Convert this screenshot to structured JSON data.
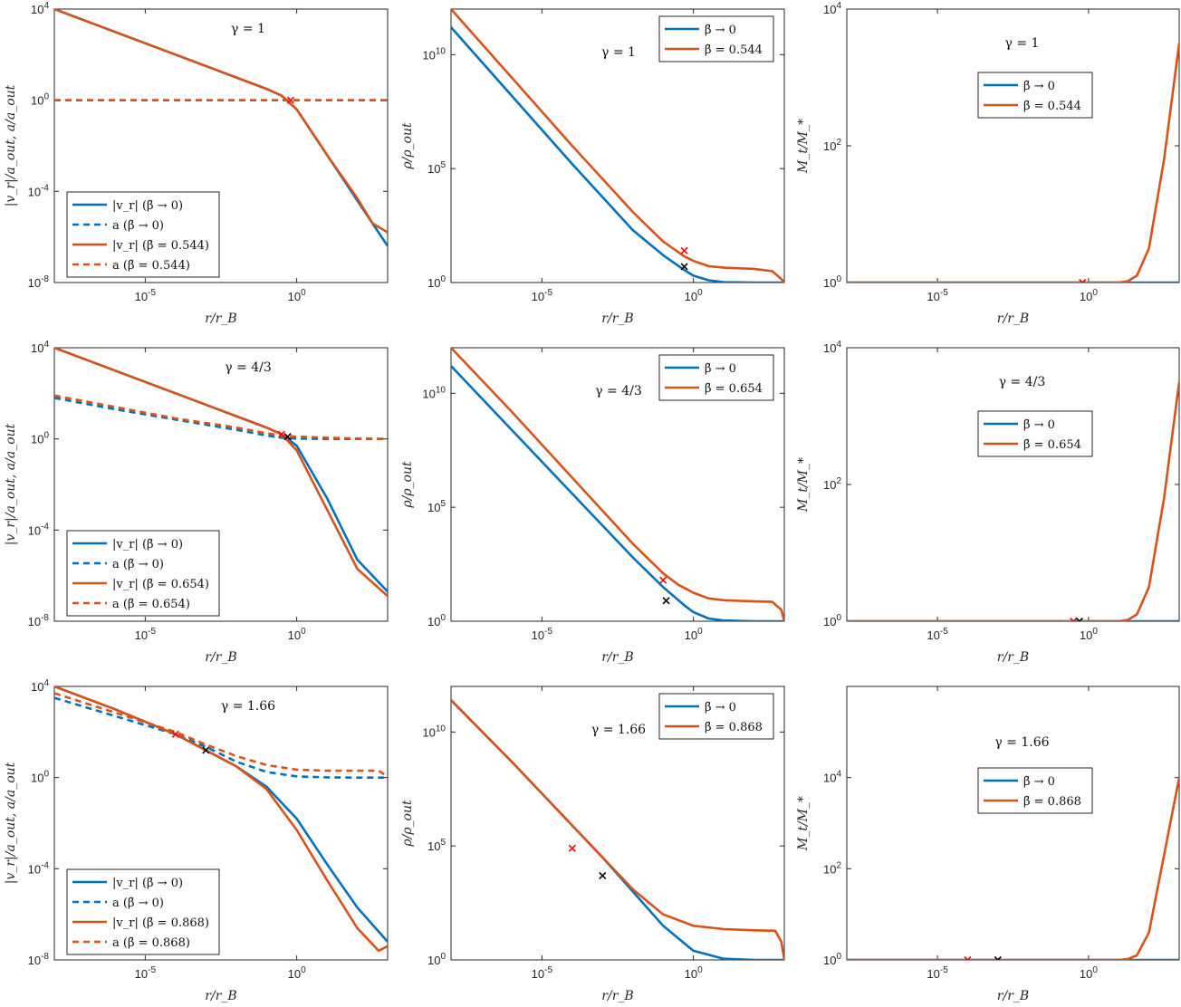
{
  "colors": {
    "blue": "#0072BD",
    "orange": "#D95319",
    "red": "#ff0000",
    "black": "#000000"
  },
  "chart_data": [
    {
      "type": "line",
      "row": 0,
      "col": 0,
      "title": "γ = 1",
      "xlabel": "r/r_B",
      "ylabel": "|v_r|/a_out, a/a_out",
      "xlim": [
        -8,
        3
      ],
      "ylim": [
        -8,
        4
      ],
      "xticks": [
        "10^-5",
        "10^0"
      ],
      "yticks": [
        "10^-8",
        "10^-4",
        "10^0",
        "10^4"
      ],
      "legend": [
        "|v_r| (β̃ → 0)",
        "a (β̃ → 0)",
        "|v_r| (β̃ = 0.544)",
        "a (β̃ = 0.544)"
      ],
      "series": [
        {
          "name": "|v_r| (β̃ → 0)",
          "color": "blue",
          "dash": false,
          "x": [
            -8,
            -6,
            -4,
            -2,
            -1,
            -0.5,
            0,
            1,
            2,
            3
          ],
          "y": [
            4,
            3.0,
            2.0,
            1.0,
            0.5,
            0.2,
            -0.4,
            -2.4,
            -4.4,
            -6.4
          ]
        },
        {
          "name": "a (β̃ → 0)",
          "color": "blue",
          "dash": true,
          "x": [
            -8,
            3
          ],
          "y": [
            0,
            0
          ]
        },
        {
          "name": "|v_r| (β̃ = 0.544)",
          "color": "orange",
          "dash": false,
          "x": [
            -8,
            -6,
            -4,
            -2,
            -1,
            -0.5,
            0,
            1,
            2,
            2.5,
            3
          ],
          "y": [
            4,
            3.0,
            2.0,
            1.0,
            0.5,
            0.2,
            -0.4,
            -2.4,
            -4.3,
            -5.4,
            -5.8
          ]
        },
        {
          "name": "a (β̃ = 0.544)",
          "color": "orange",
          "dash": true,
          "x": [
            -8,
            3
          ],
          "y": [
            0,
            0
          ]
        }
      ],
      "markers": [
        {
          "x": -0.2,
          "y": 0,
          "color": "red"
        }
      ]
    },
    {
      "type": "line",
      "row": 0,
      "col": 1,
      "title": "γ = 1",
      "xlabel": "r/r_B",
      "ylabel": "ρ/ρ_out",
      "xlim": [
        -8,
        3
      ],
      "ylim": [
        0,
        12
      ],
      "xticks": [
        "10^-5",
        "10^0"
      ],
      "yticks": [
        "10^0",
        "10^5",
        "10^10"
      ],
      "legend": [
        "β̃ → 0",
        "β̃ = 0.544"
      ],
      "series": [
        {
          "name": "β̃ → 0",
          "color": "blue",
          "dash": false,
          "x": [
            -8,
            -6,
            -4,
            -2,
            -1,
            -0.3,
            0,
            0.5,
            1,
            2,
            3
          ],
          "y": [
            11.2,
            8.2,
            5.2,
            2.3,
            1.2,
            0.55,
            0.3,
            0.1,
            0.02,
            0,
            0
          ]
        },
        {
          "name": "β̃ = 0.544",
          "color": "orange",
          "dash": false,
          "x": [
            -8,
            -6,
            -4,
            -2,
            -1,
            -0.3,
            0,
            0.5,
            1,
            2,
            2.6,
            2.9,
            3
          ],
          "y": [
            12,
            9.0,
            6.0,
            3.1,
            1.8,
            1.15,
            0.95,
            0.72,
            0.65,
            0.6,
            0.5,
            0.15,
            0
          ]
        }
      ],
      "markers": [
        {
          "x": -0.3,
          "y": 1.4,
          "color": "red"
        },
        {
          "x": -0.3,
          "y": 0.7,
          "color": "black"
        }
      ]
    },
    {
      "type": "line",
      "row": 0,
      "col": 2,
      "title": "γ = 1",
      "xlabel": "r/r_B",
      "ylabel": "M_t/M_*",
      "xlim": [
        -8,
        3
      ],
      "ylim": [
        0,
        4
      ],
      "xticks": [
        "10^-5",
        "10^0"
      ],
      "yticks": [
        "10^0",
        "10^2",
        "10^4"
      ],
      "legend": [
        "β̃ → 0",
        "β̃ = 0.544"
      ],
      "series": [
        {
          "name": "β̃ → 0",
          "color": "blue",
          "dash": false,
          "x": [
            -8,
            3
          ],
          "y": [
            0,
            0
          ]
        },
        {
          "name": "β̃ = 0.544",
          "color": "orange",
          "dash": false,
          "x": [
            -8,
            1,
            1.3,
            1.6,
            2,
            2.5,
            3
          ],
          "y": [
            0,
            0,
            0.02,
            0.1,
            0.5,
            1.8,
            3.5
          ]
        }
      ],
      "markers": [
        {
          "x": -0.2,
          "y": 0,
          "color": "red"
        }
      ]
    },
    {
      "type": "line",
      "row": 1,
      "col": 0,
      "title": "γ = 4/3",
      "xlabel": "r/r_B",
      "ylabel": "|v_r|/a_out, a/a_out",
      "xlim": [
        -8,
        3
      ],
      "ylim": [
        -8,
        4
      ],
      "xticks": [
        "10^-5",
        "10^0"
      ],
      "yticks": [
        "10^-8",
        "10^-4",
        "10^0",
        "10^4"
      ],
      "legend": [
        "|v_r| (β̃ → 0)",
        "a (β̃ → 0)",
        "|v_r| (β̃ = 0.654)",
        "a (β̃ = 0.654)"
      ],
      "series": [
        {
          "name": "|v_r| (β̃ → 0)",
          "color": "blue",
          "dash": false,
          "x": [
            -8,
            -6,
            -4,
            -2,
            -1,
            -0.5,
            0,
            1,
            2,
            3
          ],
          "y": [
            4,
            3.0,
            2.0,
            1.0,
            0.5,
            0.2,
            -0.3,
            -2.6,
            -5.3,
            -6.7
          ]
        },
        {
          "name": "a (β̃ → 0)",
          "color": "blue",
          "dash": true,
          "x": [
            -8,
            -6,
            -4,
            -2,
            -1,
            -0.5,
            0,
            1,
            2,
            3
          ],
          "y": [
            1.8,
            1.3,
            0.85,
            0.4,
            0.15,
            0.05,
            0.01,
            0,
            0,
            0
          ]
        },
        {
          "name": "|v_r| (β̃ = 0.654)",
          "color": "orange",
          "dash": false,
          "x": [
            -8,
            -6,
            -4,
            -2,
            -1,
            -0.5,
            0,
            1,
            2,
            3
          ],
          "y": [
            4,
            3.0,
            2.0,
            1.0,
            0.5,
            0.2,
            -0.5,
            -3.1,
            -5.7,
            -6.9
          ]
        },
        {
          "name": "a (β̃ = 0.654)",
          "color": "orange",
          "dash": true,
          "x": [
            -8,
            -6,
            -4,
            -2,
            -1,
            -0.5,
            0,
            1,
            2,
            3
          ],
          "y": [
            1.9,
            1.4,
            0.9,
            0.5,
            0.25,
            0.15,
            0.1,
            0.05,
            0.02,
            0
          ]
        }
      ],
      "markers": [
        {
          "x": -0.5,
          "y": 0.2,
          "color": "red"
        },
        {
          "x": -0.3,
          "y": 0.1,
          "color": "black"
        }
      ]
    },
    {
      "type": "line",
      "row": 1,
      "col": 1,
      "title": "γ = 4/3",
      "xlabel": "r/r_B",
      "ylabel": "ρ/ρ_out",
      "xlim": [
        -8,
        3
      ],
      "ylim": [
        0,
        12
      ],
      "xticks": [
        "10^-5",
        "10^0"
      ],
      "yticks": [
        "10^0",
        "10^5",
        "10^10"
      ],
      "legend": [
        "β̃ → 0",
        "β̃ = 0.654"
      ],
      "series": [
        {
          "name": "β̃ → 0",
          "color": "blue",
          "dash": false,
          "x": [
            -8,
            -6,
            -4,
            -2,
            -1,
            -0.3,
            0,
            0.5,
            1,
            2,
            3
          ],
          "y": [
            11.2,
            8.4,
            5.6,
            2.8,
            1.5,
            0.7,
            0.4,
            0.12,
            0.03,
            0,
            0
          ]
        },
        {
          "name": "β̃ = 0.654",
          "color": "orange",
          "dash": false,
          "x": [
            -8,
            -6,
            -4,
            -2,
            -1,
            -0.5,
            0,
            0.5,
            1,
            2,
            2.6,
            2.9,
            3
          ],
          "y": [
            12,
            9.2,
            6.3,
            3.4,
            2.1,
            1.6,
            1.25,
            1.0,
            0.92,
            0.87,
            0.85,
            0.5,
            0
          ]
        }
      ],
      "markers": [
        {
          "x": -1.0,
          "y": 1.8,
          "color": "red"
        },
        {
          "x": -0.9,
          "y": 0.9,
          "color": "black"
        }
      ]
    },
    {
      "type": "line",
      "row": 1,
      "col": 2,
      "title": "γ = 4/3",
      "xlabel": "r/r_B",
      "ylabel": "M_t/M_*",
      "xlim": [
        -8,
        3
      ],
      "ylim": [
        0,
        4
      ],
      "xticks": [
        "10^-5",
        "10^0"
      ],
      "yticks": [
        "10^0",
        "10^2",
        "10^4"
      ],
      "legend": [
        "β̃ → 0",
        "β̃ = 0.654"
      ],
      "series": [
        {
          "name": "β̃ → 0",
          "color": "blue",
          "dash": false,
          "x": [
            -8,
            3
          ],
          "y": [
            0,
            0
          ]
        },
        {
          "name": "β̃ = 0.654",
          "color": "orange",
          "dash": false,
          "x": [
            -8,
            1,
            1.3,
            1.6,
            2,
            2.5,
            3
          ],
          "y": [
            0,
            0,
            0.02,
            0.1,
            0.5,
            1.8,
            3.5
          ]
        }
      ],
      "markers": [
        {
          "x": -0.5,
          "y": 0,
          "color": "red"
        },
        {
          "x": -0.3,
          "y": 0,
          "color": "black"
        }
      ]
    },
    {
      "type": "line",
      "row": 2,
      "col": 0,
      "title": "γ = 1.66",
      "xlabel": "r/r_B",
      "ylabel": "|v_r|/a_out, a/a_out",
      "xlim": [
        -8,
        3
      ],
      "ylim": [
        -8,
        4
      ],
      "xticks": [
        "10^-5",
        "10^0"
      ],
      "yticks": [
        "10^-8",
        "10^-4",
        "10^0",
        "10^4"
      ],
      "legend": [
        "|v_r| (β̃ → 0)",
        "a (β̃ → 0)",
        "|v_r| (β̃ = 0.868)",
        "a (β̃ = 0.868)"
      ],
      "series": [
        {
          "name": "|v_r| (β̃ → 0)",
          "color": "blue",
          "dash": false,
          "x": [
            -8,
            -6,
            -4,
            -3,
            -2,
            -1,
            0,
            1,
            2,
            3
          ],
          "y": [
            4,
            3.0,
            1.9,
            1.2,
            0.5,
            -0.4,
            -1.8,
            -3.8,
            -5.7,
            -7.2
          ]
        },
        {
          "name": "a (β̃ → 0)",
          "color": "blue",
          "dash": true,
          "x": [
            -8,
            -6,
            -4,
            -3,
            -2,
            -1,
            0,
            1,
            2,
            3
          ],
          "y": [
            3.5,
            2.7,
            1.9,
            1.35,
            0.7,
            0.25,
            0.05,
            0.01,
            0,
            0
          ]
        },
        {
          "name": "|v_r| (β̃ = 0.868)",
          "color": "orange",
          "dash": false,
          "x": [
            -8,
            -6,
            -4,
            -3,
            -2,
            -1,
            0,
            1,
            2,
            2.7,
            3
          ],
          "y": [
            4,
            3.0,
            1.9,
            1.2,
            0.5,
            -0.5,
            -2.3,
            -4.5,
            -6.6,
            -7.6,
            -7.4
          ]
        },
        {
          "name": "a (β̃ = 0.868)",
          "color": "orange",
          "dash": true,
          "x": [
            -8,
            -6,
            -4,
            -3,
            -2,
            -1,
            0,
            1,
            2,
            2.7,
            3
          ],
          "y": [
            3.7,
            2.85,
            2.0,
            1.45,
            0.95,
            0.55,
            0.35,
            0.3,
            0.3,
            0.3,
            0.05
          ]
        }
      ],
      "markers": [
        {
          "x": -4,
          "y": 1.9,
          "color": "red"
        },
        {
          "x": -3,
          "y": 1.2,
          "color": "black"
        }
      ]
    },
    {
      "type": "line",
      "row": 2,
      "col": 1,
      "title": "γ = 1.66",
      "xlabel": "r/r_B",
      "ylabel": "ρ/ρ_out",
      "xlim": [
        -8,
        3
      ],
      "ylim": [
        0,
        12
      ],
      "xticks": [
        "10^-5",
        "10^0"
      ],
      "yticks": [
        "10^0",
        "10^5",
        "10^10"
      ],
      "legend": [
        "β̃ → 0",
        "β̃ = 0.868"
      ],
      "series": [
        {
          "name": "β̃ → 0",
          "color": "blue",
          "dash": false,
          "x": [
            -8,
            -6,
            -4,
            -3,
            -2,
            -1,
            0,
            1,
            2,
            3
          ],
          "y": [
            11.4,
            8.7,
            5.9,
            4.5,
            3.0,
            1.5,
            0.4,
            0.05,
            0,
            0
          ]
        },
        {
          "name": "β̃ = 0.868",
          "color": "orange",
          "dash": false,
          "x": [
            -8,
            -6,
            -4,
            -3,
            -2,
            -1,
            0,
            1,
            2,
            2.7,
            2.9,
            3
          ],
          "y": [
            11.4,
            8.7,
            5.9,
            4.5,
            3.1,
            2.0,
            1.5,
            1.35,
            1.3,
            1.28,
            0.8,
            0
          ]
        }
      ],
      "markers": [
        {
          "x": -4,
          "y": 4.9,
          "color": "red"
        },
        {
          "x": -3,
          "y": 3.7,
          "color": "black"
        }
      ]
    },
    {
      "type": "line",
      "row": 2,
      "col": 2,
      "title": "γ = 1.66",
      "xlabel": "r/r_B",
      "ylabel": "M_t/M_*",
      "xlim": [
        -8,
        3
      ],
      "ylim": [
        0,
        6
      ],
      "xticks": [
        "10^-5",
        "10^0"
      ],
      "yticks": [
        "10^0",
        "10^2",
        "10^4"
      ],
      "legend": [
        "β̃ → 0",
        "β̃ = 0.868"
      ],
      "series": [
        {
          "name": "β̃ → 0",
          "color": "blue",
          "dash": false,
          "x": [
            -8,
            3
          ],
          "y": [
            0,
            0
          ]
        },
        {
          "name": "β̃ = 0.868",
          "color": "orange",
          "dash": false,
          "x": [
            -8,
            1,
            1.3,
            1.6,
            2,
            2.5,
            3
          ],
          "y": [
            0,
            0,
            0.02,
            0.1,
            0.6,
            2.3,
            4.0
          ]
        }
      ],
      "markers": [
        {
          "x": -4,
          "y": 0,
          "color": "red"
        },
        {
          "x": -3,
          "y": 0,
          "color": "black"
        }
      ]
    }
  ]
}
